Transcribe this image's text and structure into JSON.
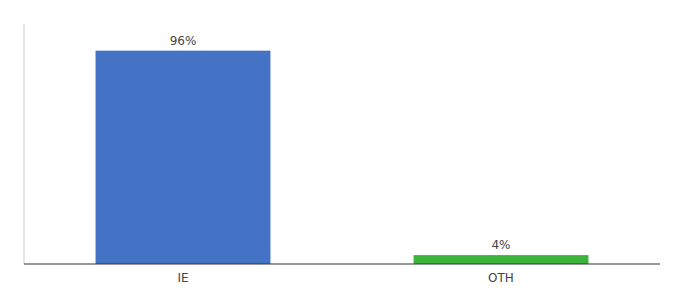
{
  "chart_data": {
    "type": "bar",
    "categories": [
      "IE",
      "OTH"
    ],
    "values": [
      96,
      4
    ],
    "value_labels": [
      "96%",
      "4%"
    ],
    "colors": [
      "#4472c4",
      "#3cb43c"
    ],
    "ylim": [
      0,
      108
    ],
    "data_labels": true,
    "tick_labels": "x"
  }
}
